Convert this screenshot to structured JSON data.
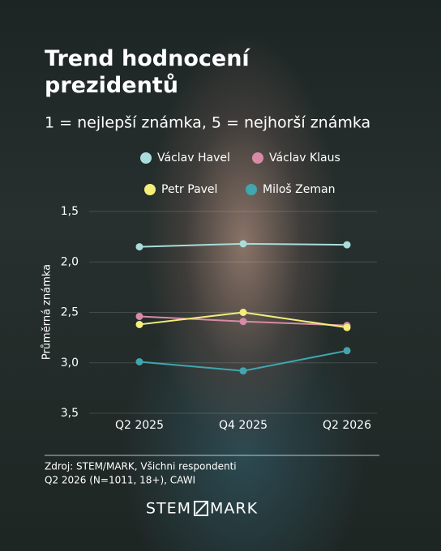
{
  "chart_data": {
    "type": "line",
    "title": "Trend hodnocení prezidentů",
    "subtitle": "1 = nejlepší známka, 5 = nejhorší známka",
    "y_label": "Průměrná známka",
    "categories": [
      "Q2 2025",
      "Q4 2025",
      "Q2 2026"
    ],
    "series": [
      {
        "name": "Václav Havel",
        "color": "#a9dcdc",
        "values": [
          1.85,
          1.82,
          1.83
        ]
      },
      {
        "name": "Václav Klaus",
        "color": "#d88aa6",
        "values": [
          2.54,
          2.59,
          2.63
        ]
      },
      {
        "name": "Petr Pavel",
        "color": "#f4ef7a",
        "values": [
          2.62,
          2.5,
          2.65
        ]
      },
      {
        "name": "Miloš Zeman",
        "color": "#40a6b0",
        "values": [
          2.99,
          3.08,
          2.88
        ]
      }
    ],
    "ylim": [
      3.5,
      1.5
    ],
    "yticks": [
      {
        "value": 1.5,
        "label": "1,5"
      },
      {
        "value": 2.0,
        "label": "2,0"
      },
      {
        "value": 2.5,
        "label": "2,5"
      },
      {
        "value": 3.0,
        "label": "3,0"
      },
      {
        "value": 3.5,
        "label": "3,5"
      }
    ],
    "grid": true,
    "source": [
      "Zdroj: STEM/MARK, Všichni respondenti",
      "Q2 2026  (N=1011, 18+), CAWI"
    ],
    "logo": [
      "STEM",
      "MARK"
    ]
  }
}
